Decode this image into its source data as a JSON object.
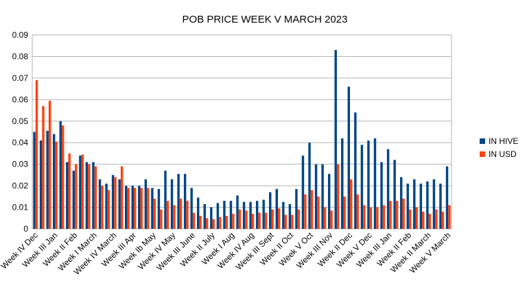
{
  "chart_data": {
    "type": "bar",
    "title": "POB PRICE WEEK V MARCH 2023",
    "categories": [
      "Week IV Dec",
      null,
      null,
      "Week III Jan",
      null,
      null,
      "Week II Feb",
      null,
      null,
      "Week I March",
      null,
      null,
      "Week IV March",
      null,
      null,
      "Week III Apr",
      null,
      null,
      "Week Ib May",
      null,
      null,
      "Week IV May",
      null,
      null,
      "Week III June",
      null,
      null,
      "Week II July",
      null,
      null,
      "Week I Aug",
      null,
      null,
      "Week IV Aug",
      null,
      null,
      "Week III Sept",
      null,
      null,
      "Week II Oct",
      null,
      null,
      "Week V Oct",
      null,
      null,
      "Week III Nov",
      null,
      null,
      "Week II Dec",
      null,
      null,
      "Week V Dec",
      null,
      null,
      "Week III Jan",
      null,
      null,
      "Week II Feb",
      null,
      null,
      "Week II March",
      null,
      null,
      "Week V March"
    ],
    "series": [
      {
        "name": "IN HIVE",
        "color": "#004586",
        "values": [
          0.045,
          0.041,
          0.0455,
          0.044,
          0.05,
          0.031,
          0.027,
          0.034,
          0.031,
          0.031,
          0.023,
          0.021,
          0.025,
          0.023,
          0.02,
          0.02,
          0.02,
          0.023,
          0.019,
          0.0185,
          0.027,
          0.023,
          0.0255,
          0.0255,
          0.019,
          0.0145,
          0.0115,
          0.01,
          0.012,
          0.013,
          0.013,
          0.0155,
          0.0125,
          0.0125,
          0.013,
          0.0135,
          0.017,
          0.0185,
          0.0125,
          0.0115,
          0.0185,
          0.034,
          0.04,
          0.03,
          0.03,
          0.0255,
          0.083,
          0.042,
          0.066,
          0.054,
          0.039,
          0.041,
          0.042,
          0.031,
          0.037,
          0.032,
          0.024,
          0.021,
          0.023,
          0.021,
          0.022,
          0.023,
          0.021,
          0.029
        ]
      },
      {
        "name": "IN USD",
        "color": "#ff420e",
        "values": [
          0.069,
          0.057,
          0.0595,
          0.0405,
          0.048,
          0.035,
          0.03,
          0.0345,
          0.03,
          0.029,
          0.02,
          0.018,
          0.024,
          0.029,
          0.019,
          0.019,
          0.019,
          0.019,
          0.014,
          0.009,
          0.013,
          0.011,
          0.014,
          0.013,
          0.0075,
          0.006,
          0.005,
          0.0045,
          0.0055,
          0.006,
          0.007,
          0.009,
          0.0085,
          0.007,
          0.0075,
          0.0075,
          0.009,
          0.0095,
          0.0065,
          0.0065,
          0.009,
          0.016,
          0.018,
          0.015,
          0.01,
          0.0085,
          0.03,
          0.015,
          0.023,
          0.016,
          0.011,
          0.01,
          0.01,
          0.011,
          0.013,
          0.013,
          0.014,
          0.009,
          0.01,
          0.008,
          0.007,
          0.009,
          0.008,
          0.011
        ]
      }
    ],
    "ylim": [
      0,
      0.09
    ],
    "yticks": [
      0,
      0.01,
      0.02,
      0.03,
      0.04,
      0.05,
      0.06,
      0.07,
      0.08,
      0.09
    ],
    "grid": true,
    "legend": "right"
  }
}
